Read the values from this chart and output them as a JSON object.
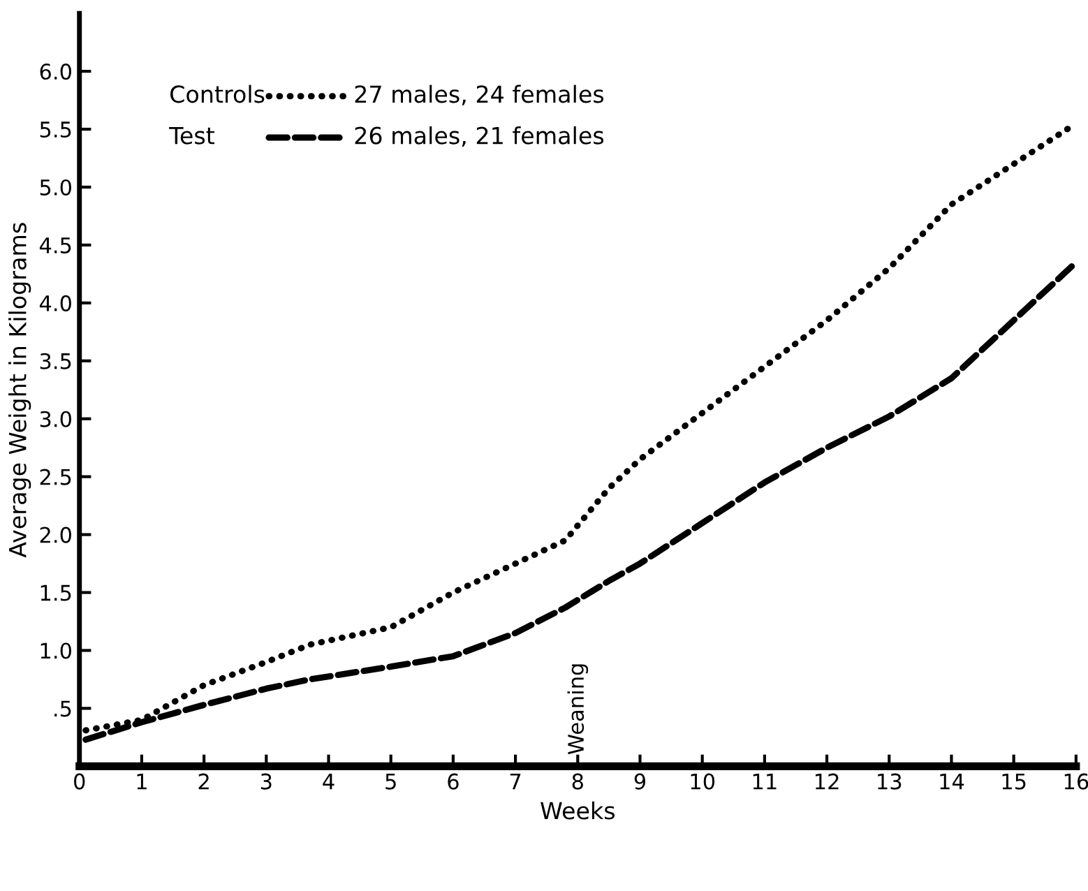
{
  "chart_data": {
    "type": "line",
    "xlabel": "Weeks",
    "ylabel": "Average Weight in Kilograms",
    "x": [
      0.1,
      1,
      2,
      3,
      3.7,
      5,
      6,
      7,
      7.8,
      8.5,
      9,
      10,
      11,
      12,
      13,
      14,
      15,
      16
    ],
    "series": [
      {
        "name": "Controls",
        "color": "#000000",
        "line_style": "dotted",
        "values": [
          0.31,
          0.4,
          0.7,
          0.9,
          1.05,
          1.2,
          1.5,
          1.75,
          1.95,
          2.4,
          2.65,
          3.05,
          3.45,
          3.85,
          4.3,
          4.85,
          5.2,
          5.55
        ]
      },
      {
        "name": "Test",
        "color": "#000000",
        "line_style": "dashed",
        "values": [
          0.23,
          0.38,
          0.53,
          0.67,
          0.75,
          0.86,
          0.95,
          1.15,
          1.37,
          1.6,
          1.75,
          2.1,
          2.45,
          2.75,
          3.02,
          3.35,
          3.85,
          4.35
        ]
      }
    ],
    "annotations": [
      "27 males, 24 females",
      "26 males, 21 females",
      "Weaning"
    ],
    "legend": "top left",
    "xlim": [
      0,
      16
    ],
    "ylim": [
      0,
      6.5
    ],
    "xticks": [
      0,
      1,
      2,
      3,
      4,
      5,
      6,
      7,
      8,
      9,
      10,
      11,
      12,
      13,
      14,
      15,
      16
    ],
    "yticks": [
      {
        "value": 0.5,
        "label": ".5"
      },
      {
        "value": 1,
        "label": "1.0"
      },
      1.5,
      {
        "value": 2,
        "label": "2.0"
      },
      2.5,
      {
        "value": 3,
        "label": "3.0"
      },
      3.5,
      {
        "value": 4,
        "label": "4.0"
      },
      4.5,
      {
        "value": 5,
        "label": "5.0"
      },
      5.5,
      {
        "value": 6,
        "label": "6.0"
      }
    ],
    "grid": false,
    "marker": "none"
  }
}
